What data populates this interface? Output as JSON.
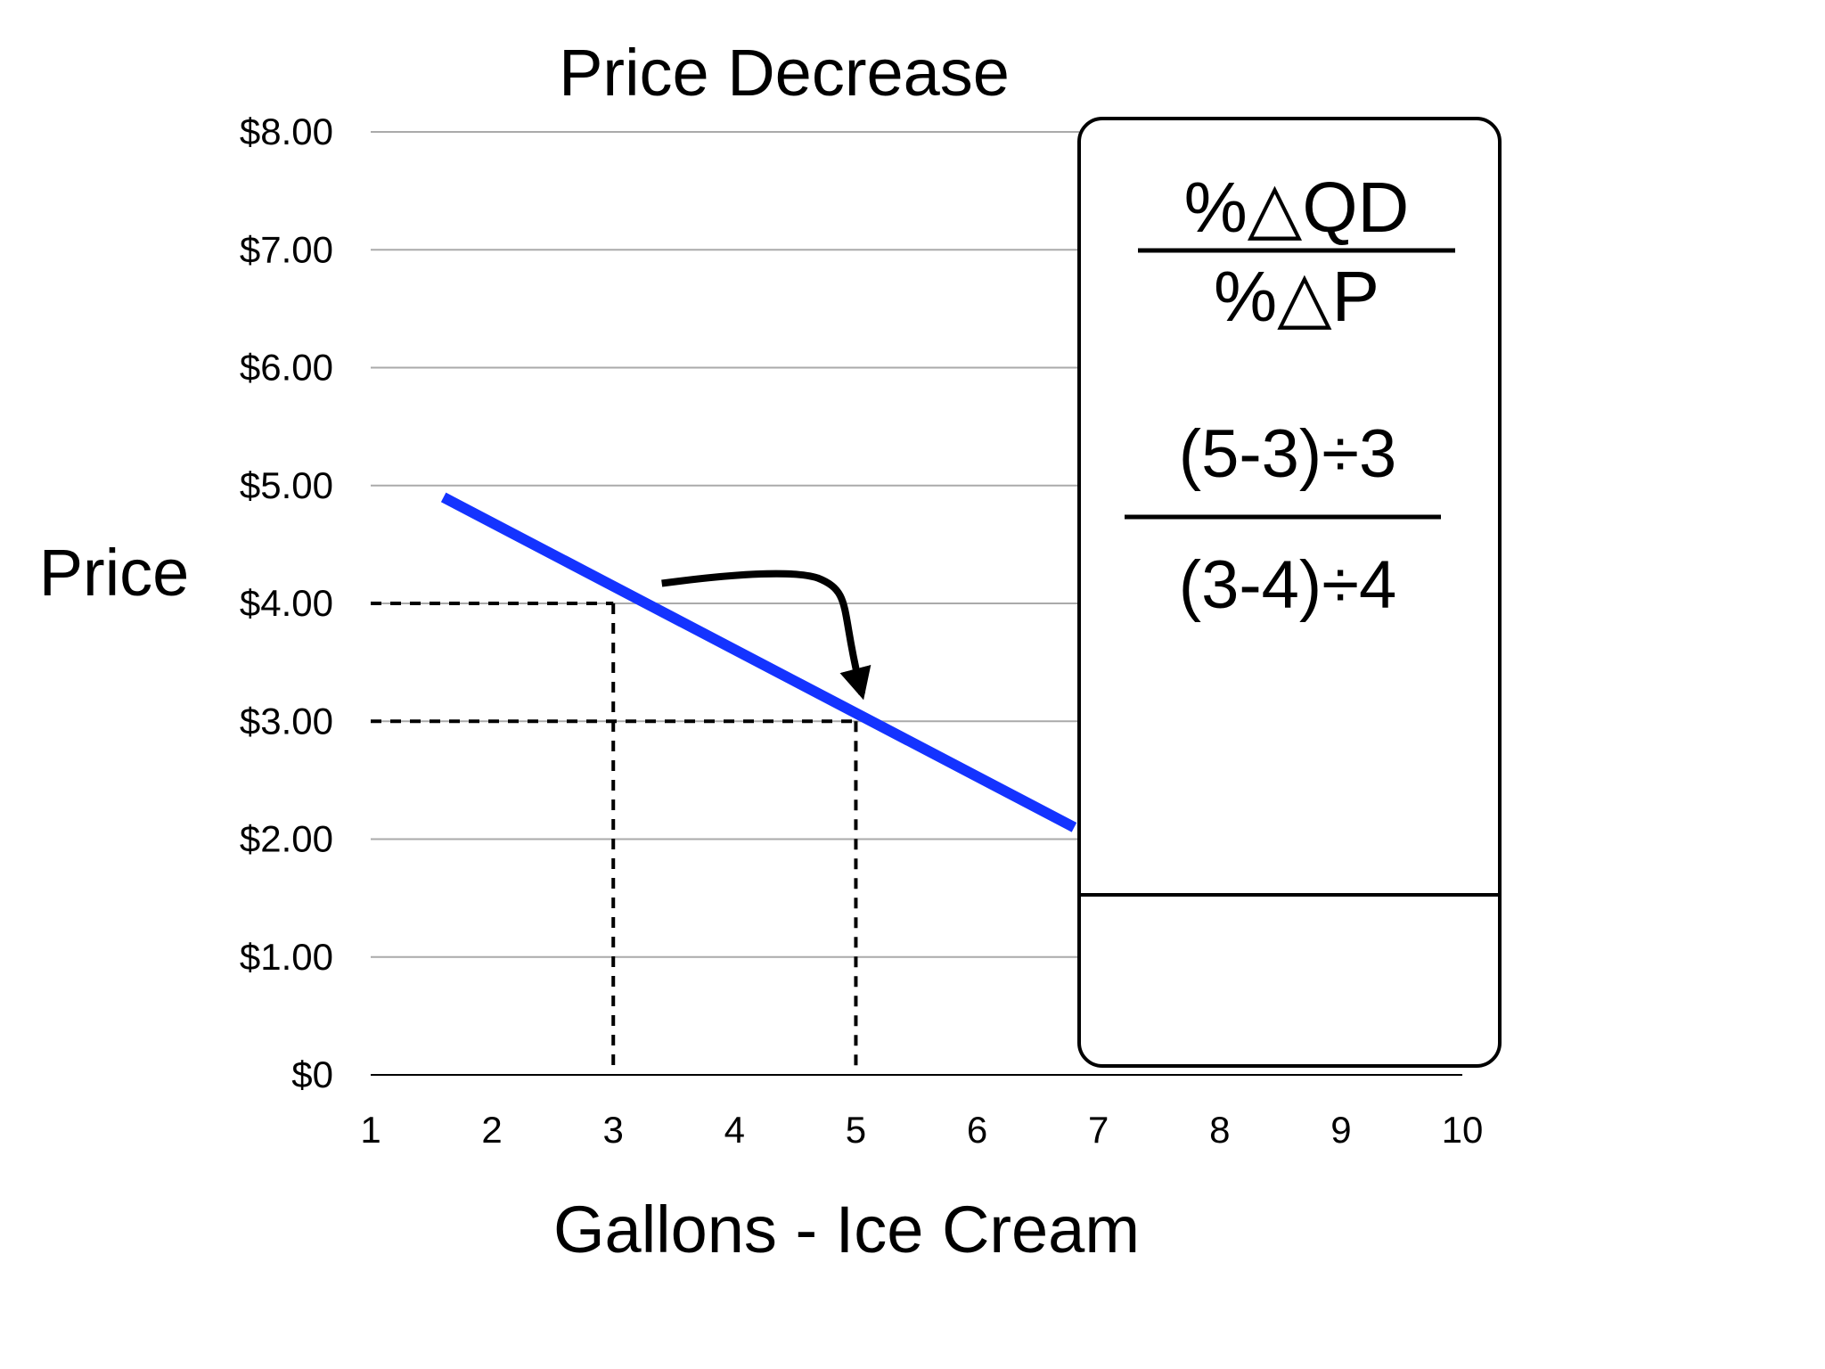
{
  "chart_data": {
    "type": "line",
    "title": "Price Decrease",
    "xlabel": "Gallons - Ice Cream",
    "ylabel": "Price",
    "x_ticks": [
      "1",
      "2",
      "3",
      "4",
      "5",
      "6",
      "7",
      "8",
      "9",
      "10"
    ],
    "y_ticks": [
      "$0",
      "$1.00",
      "$2.00",
      "$3.00",
      "$4.00",
      "$5.00",
      "$6.00",
      "$7.00",
      "$8.00"
    ],
    "xlim": [
      1,
      10
    ],
    "ylim": [
      0,
      8
    ],
    "grid": "horizontal",
    "series": [
      {
        "name": "",
        "color": "#1433ff",
        "x": [
          1.6,
          6.8
        ],
        "y": [
          4.9,
          2.1
        ]
      }
    ],
    "guides": [
      {
        "x": 3,
        "y": 4
      },
      {
        "x": 5,
        "y": 3
      }
    ],
    "arrow": {
      "from": {
        "x": 3.4,
        "y": 4.17
      },
      "to": {
        "x": 5.05,
        "y": 3.12
      }
    }
  },
  "formula_box": {
    "formula_numerator": "%△QD",
    "formula_denominator": "%△P",
    "calc_numerator": "(5-3)÷3",
    "calc_denominator": "(3-4)÷4",
    "result": ""
  }
}
